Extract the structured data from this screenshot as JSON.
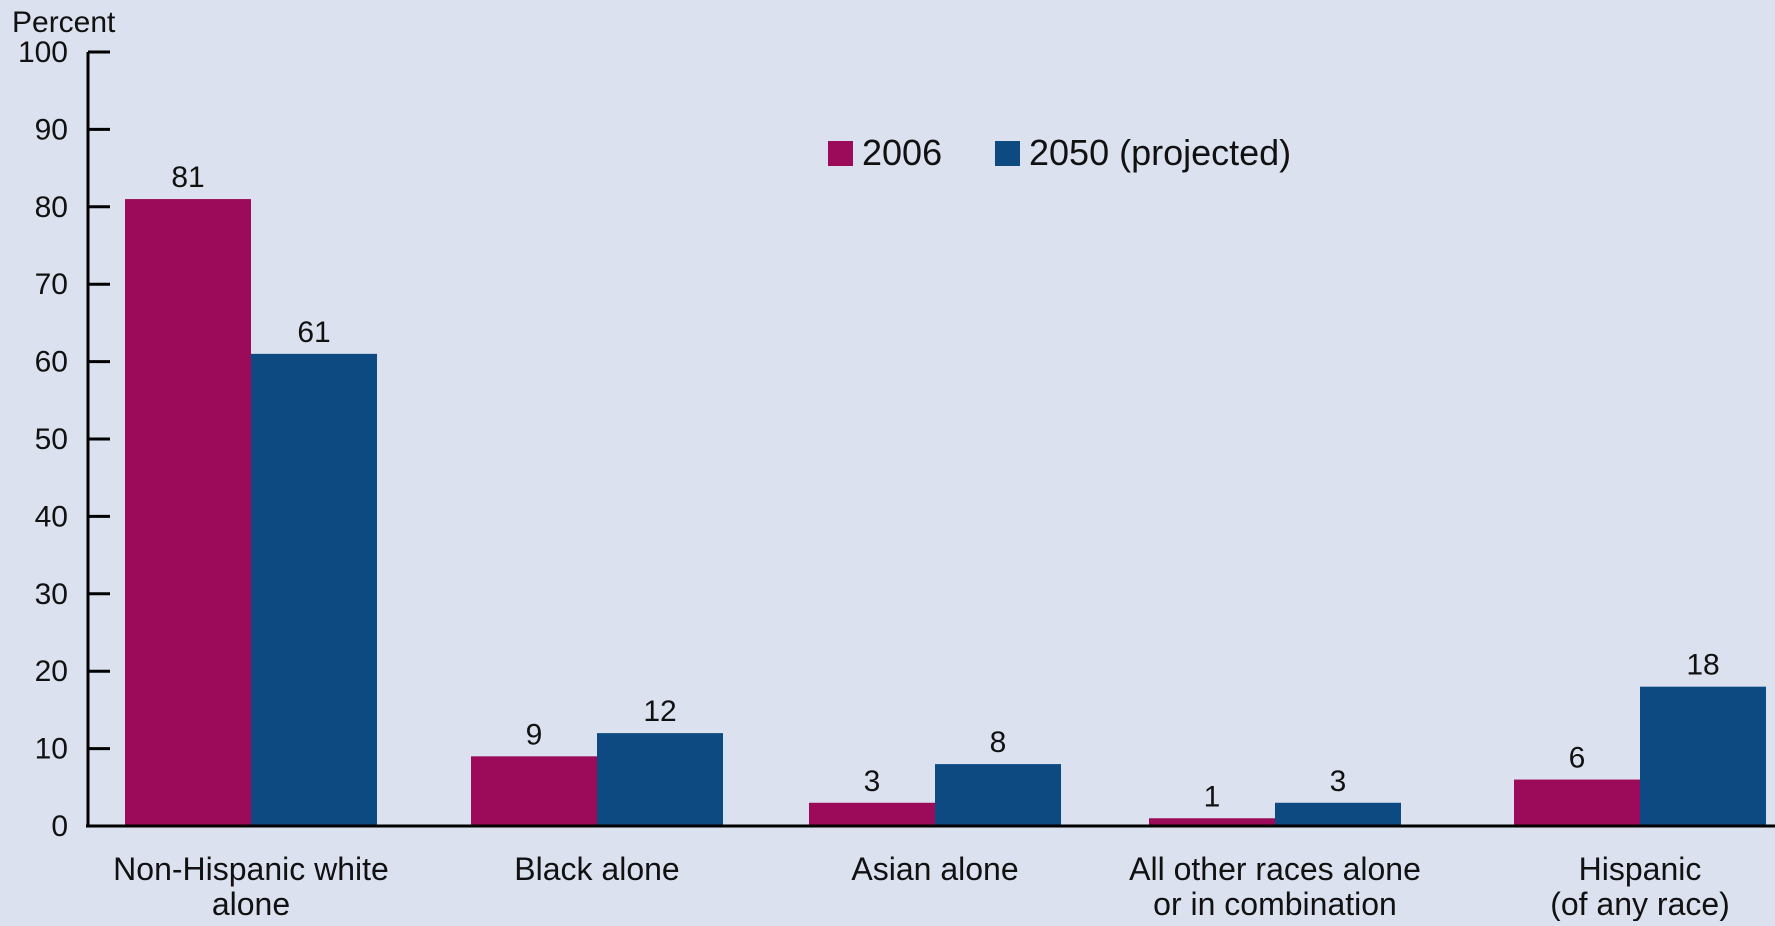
{
  "chart_data": {
    "type": "bar",
    "ylabel": "Percent",
    "ylim": [
      0,
      100
    ],
    "yticks": [
      0,
      10,
      20,
      30,
      40,
      50,
      60,
      70,
      80,
      90,
      100
    ],
    "categories": [
      [
        "Non-Hispanic white",
        "alone"
      ],
      [
        "Black alone"
      ],
      [
        "Asian alone"
      ],
      [
        "All other races alone",
        "or in combination"
      ],
      [
        "Hispanic",
        "(of any race)"
      ]
    ],
    "series": [
      {
        "name": "2006",
        "color": "#9c0b5a",
        "values": [
          81,
          9,
          3,
          1,
          6
        ]
      },
      {
        "name": "2050 (projected)",
        "color": "#0d4a82",
        "values": [
          61,
          12,
          8,
          3,
          18
        ]
      }
    ],
    "legend_position": "top-center",
    "grid": false
  }
}
